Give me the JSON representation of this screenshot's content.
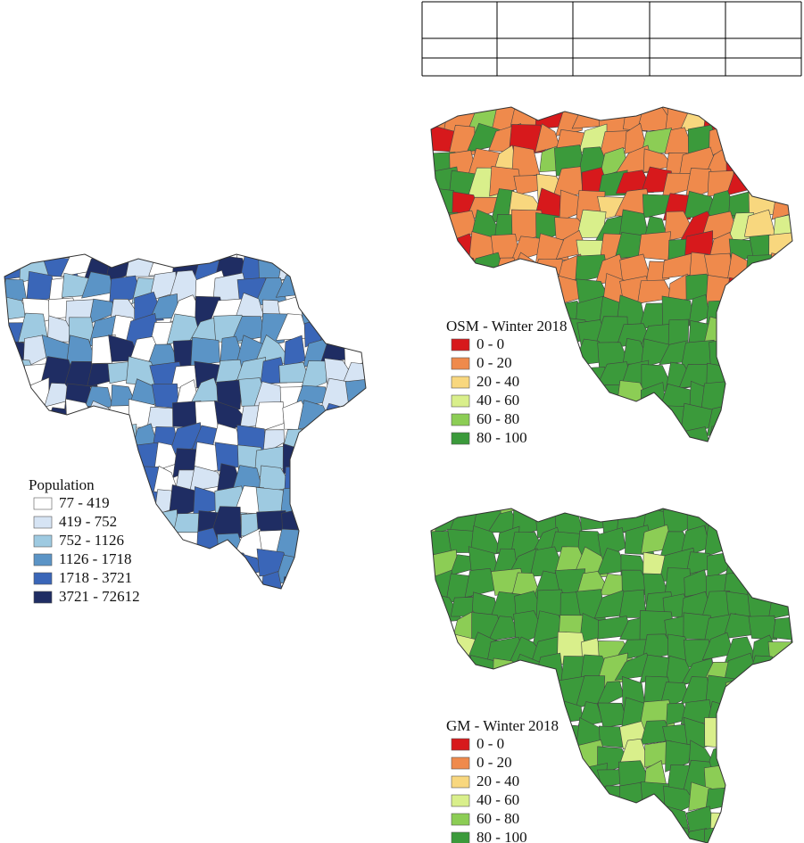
{
  "maps": [
    {
      "legend_title": "Population",
      "items": [
        {
          "label": "77 - 419",
          "color": "#ffffff"
        },
        {
          "label": "419 - 752",
          "color": "#d6e4f4"
        },
        {
          "label": "752 - 1126",
          "color": "#9ecae1"
        },
        {
          "label": "1126 - 1718",
          "color": "#5b94c6"
        },
        {
          "label": "1718 - 3721",
          "color": "#3a66b8"
        },
        {
          "label": "3721 - 72612",
          "color": "#1f2d63"
        }
      ]
    },
    {
      "legend_title": "OSM - Winter 2018",
      "items": [
        {
          "label": "0 - 0",
          "color": "#d7191c"
        },
        {
          "label": "0 - 20",
          "color": "#ef8a4c"
        },
        {
          "label": "20 - 40",
          "color": "#f8d77e"
        },
        {
          "label": "40 - 60",
          "color": "#d9ef8b"
        },
        {
          "label": "60 - 80",
          "color": "#8ccd55"
        },
        {
          "label": "80 - 100",
          "color": "#3b9a3b"
        }
      ]
    },
    {
      "legend_title": "GM - Winter 2018",
      "items": [
        {
          "label": "0 - 0",
          "color": "#d7191c"
        },
        {
          "label": "0 - 20",
          "color": "#ef8a4c"
        },
        {
          "label": "20 - 40",
          "color": "#f8d77e"
        },
        {
          "label": "40 - 60",
          "color": "#d9ef8b"
        },
        {
          "label": "60 - 80",
          "color": "#8ccd55"
        },
        {
          "label": "80 - 100",
          "color": "#3b9a3b"
        }
      ]
    }
  ]
}
